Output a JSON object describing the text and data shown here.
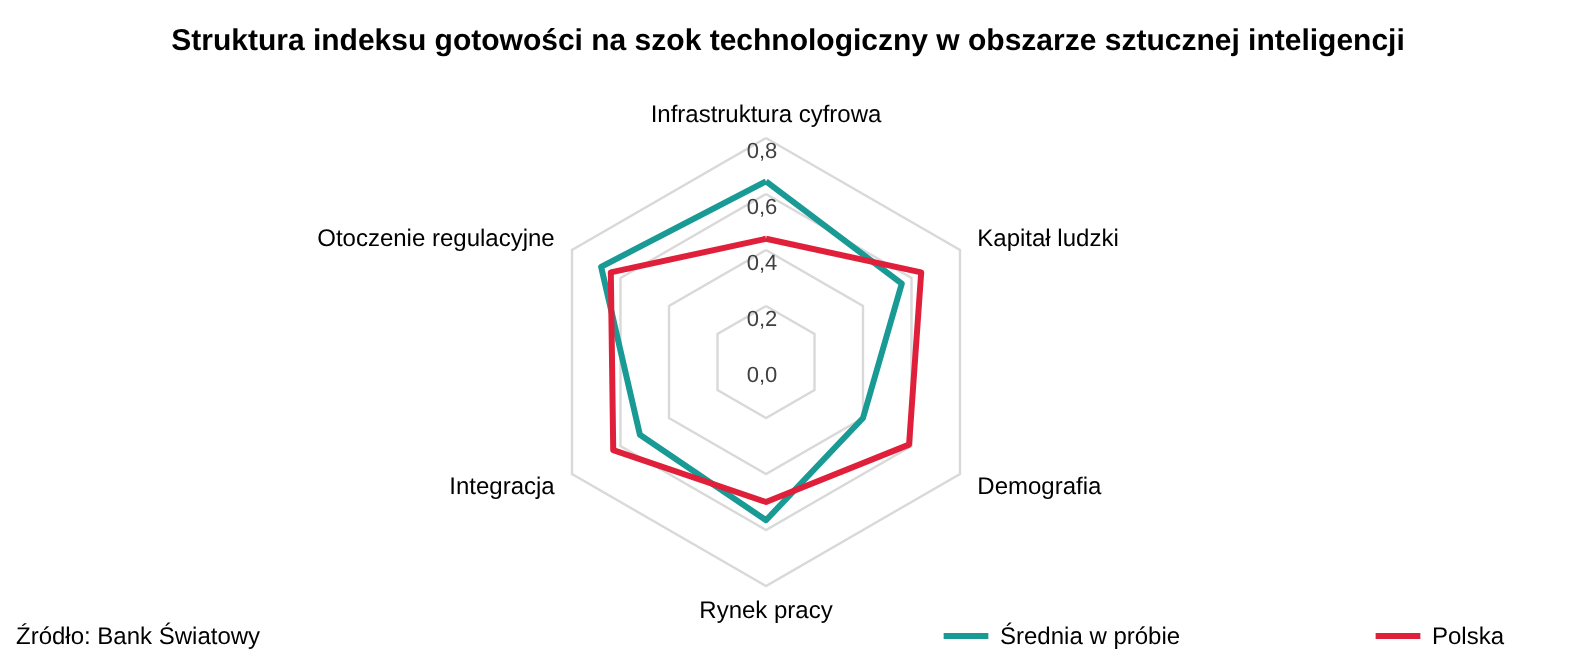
{
  "chart_data": {
    "type": "radar",
    "title": "Struktura indeksu gotowości na szok technologiczny w obszarze sztucznej inteligencji",
    "categories": [
      "Infrastruktura cyfrowa",
      "Kapitał ludzki",
      "Demografia",
      "Rynek pracy",
      "Integracja",
      "Otoczenie regulacyjne"
    ],
    "series": [
      {
        "name": "Średnia w próbie",
        "color": "#1a9a94",
        "values": [
          0.645,
          0.56,
          0.4,
          0.565,
          0.52,
          0.68
        ]
      },
      {
        "name": "Polska",
        "color": "#e0203a",
        "values": [
          0.44,
          0.64,
          0.59,
          0.5,
          0.63,
          0.64
        ]
      }
    ],
    "ylim": [
      0,
      0.8
    ],
    "yticks": [
      {
        "value": 0,
        "label": "0,0"
      },
      {
        "value": 0.2,
        "label": "0,2"
      },
      {
        "value": 0.4,
        "label": "0,4"
      },
      {
        "value": 0.6,
        "label": "0,6"
      },
      {
        "value": 0.8,
        "label": "0,8"
      }
    ],
    "grid": true,
    "legend": "bottom right",
    "annotations": [
      "Źródło: Bank Światowy"
    ]
  }
}
